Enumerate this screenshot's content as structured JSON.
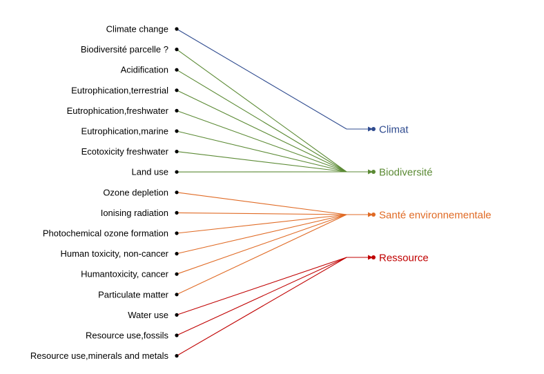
{
  "categories": [
    {
      "id": "climat",
      "label": "Climat",
      "color": "#2f4b8f"
    },
    {
      "id": "biodiversite",
      "label": "Biodiversité",
      "color": "#5b8a34"
    },
    {
      "id": "sante",
      "label": "Santé environnementale",
      "color": "#e06a24"
    },
    {
      "id": "ressource",
      "label": "Ressource",
      "color": "#c00000"
    }
  ],
  "indicators": [
    {
      "label": "Climate change",
      "category": "climat"
    },
    {
      "label": "Biodiversité parcelle ?",
      "category": "biodiversite"
    },
    {
      "label": "Acidification",
      "category": "biodiversite"
    },
    {
      "label": "Eutrophication,terrestrial",
      "category": "biodiversite"
    },
    {
      "label": "Eutrophication,freshwater",
      "category": "biodiversite"
    },
    {
      "label": "Eutrophication,marine",
      "category": "biodiversite"
    },
    {
      "label": "Ecotoxicity freshwater",
      "category": "biodiversite"
    },
    {
      "label": "Land use",
      "category": "biodiversite"
    },
    {
      "label": "Ozone depletion",
      "category": "sante"
    },
    {
      "label": "Ionising radiation",
      "category": "sante"
    },
    {
      "label": "Photochemical ozone formation",
      "category": "sante"
    },
    {
      "label": "Human toxicity, non-cancer",
      "category": "sante"
    },
    {
      "label": "Humantoxicity, cancer",
      "category": "sante"
    },
    {
      "label": "Particulate matter",
      "category": "sante"
    },
    {
      "label": "Water use",
      "category": "ressource"
    },
    {
      "label": "Resource use,fossils",
      "category": "ressource"
    },
    {
      "label": "Resource use,minerals and metals",
      "category": "ressource"
    }
  ]
}
